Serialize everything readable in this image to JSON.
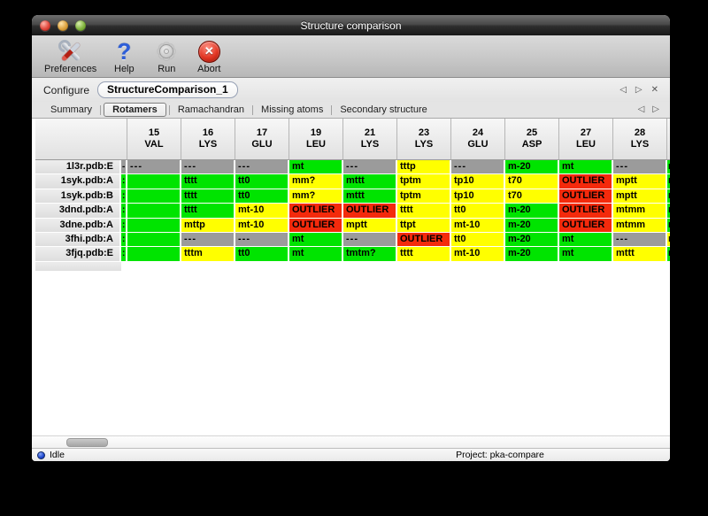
{
  "window": {
    "title": "Structure comparison"
  },
  "toolbar": {
    "buttons": [
      {
        "label": "Preferences",
        "icon": "tools-icon"
      },
      {
        "label": "Help",
        "icon": "question-icon"
      },
      {
        "label": "Run",
        "icon": "gear-icon"
      },
      {
        "label": "Abort",
        "icon": "abort-icon"
      }
    ]
  },
  "configure": {
    "label": "Configure",
    "value": "StructureComparison_1"
  },
  "panel_nav": {
    "prev": "◁",
    "next": "▷",
    "close": "✕"
  },
  "tabs": [
    {
      "label": "Summary",
      "selected": false
    },
    {
      "label": "Rotamers",
      "selected": true
    },
    {
      "label": "Ramachandran",
      "selected": false
    },
    {
      "label": "Missing atoms",
      "selected": false
    },
    {
      "label": "Secondary structure",
      "selected": false
    }
  ],
  "colors": {
    "green": "#00e400",
    "yellow": "#ffff00",
    "red": "#f42a0c",
    "gray": "#9b9b9b"
  },
  "table": {
    "columns": [
      {
        "num": "15",
        "res": "VAL"
      },
      {
        "num": "16",
        "res": "LYS"
      },
      {
        "num": "17",
        "res": "GLU"
      },
      {
        "num": "19",
        "res": "LEU"
      },
      {
        "num": "21",
        "res": "LYS"
      },
      {
        "num": "23",
        "res": "LYS"
      },
      {
        "num": "24",
        "res": "GLU"
      },
      {
        "num": "25",
        "res": "ASP"
      },
      {
        "num": "27",
        "res": "LEU"
      },
      {
        "num": "28",
        "res": "LYS"
      }
    ],
    "rows": [
      {
        "name": "1l3r.pdb:E",
        "left_sliver": {
          "color": "gray",
          "text": "-"
        },
        "cells": [
          {
            "text": "---",
            "color": "gray"
          },
          {
            "text": "---",
            "color": "gray"
          },
          {
            "text": "---",
            "color": "gray"
          },
          {
            "text": "mt",
            "color": "green"
          },
          {
            "text": "---",
            "color": "gray"
          },
          {
            "text": "tttp",
            "color": "yellow"
          },
          {
            "text": "---",
            "color": "gray"
          },
          {
            "text": "m-20",
            "color": "green"
          },
          {
            "text": "mt",
            "color": "green"
          },
          {
            "text": "---",
            "color": "gray"
          }
        ],
        "right_sliver": {
          "color": "green",
          "text": "m"
        }
      },
      {
        "name": "1syk.pdb:A",
        "left_sliver": {
          "color": "green",
          "text": ":"
        },
        "cells": [
          {
            "text": "",
            "color": "green"
          },
          {
            "text": "tttt",
            "color": "green"
          },
          {
            "text": "tt0",
            "color": "green"
          },
          {
            "text": "mm?",
            "color": "yellow"
          },
          {
            "text": "mttt",
            "color": "green"
          },
          {
            "text": "tptm",
            "color": "yellow"
          },
          {
            "text": "tp10",
            "color": "yellow"
          },
          {
            "text": "t70",
            "color": "yellow"
          },
          {
            "text": "OUTLIER",
            "color": "red"
          },
          {
            "text": "mptt",
            "color": "yellow"
          }
        ],
        "right_sliver": {
          "color": "green",
          "text": "m"
        }
      },
      {
        "name": "1syk.pdb:B",
        "left_sliver": {
          "color": "green",
          "text": ":"
        },
        "cells": [
          {
            "text": "",
            "color": "green"
          },
          {
            "text": "tttt",
            "color": "green"
          },
          {
            "text": "tt0",
            "color": "green"
          },
          {
            "text": "mm?",
            "color": "yellow"
          },
          {
            "text": "mttt",
            "color": "green"
          },
          {
            "text": "tptm",
            "color": "yellow"
          },
          {
            "text": "tp10",
            "color": "yellow"
          },
          {
            "text": "t70",
            "color": "yellow"
          },
          {
            "text": "OUTLIER",
            "color": "red"
          },
          {
            "text": "mptt",
            "color": "yellow"
          }
        ],
        "right_sliver": {
          "color": "green",
          "text": "m"
        }
      },
      {
        "name": "3dnd.pdb:A",
        "left_sliver": {
          "color": "green",
          "text": ":"
        },
        "cells": [
          {
            "text": "",
            "color": "green"
          },
          {
            "text": "tttt",
            "color": "green"
          },
          {
            "text": "mt-10",
            "color": "yellow"
          },
          {
            "text": "OUTLIER",
            "color": "red"
          },
          {
            "text": "OUTLIER",
            "color": "red"
          },
          {
            "text": "tttt",
            "color": "yellow"
          },
          {
            "text": "tt0",
            "color": "yellow"
          },
          {
            "text": "m-20",
            "color": "green"
          },
          {
            "text": "OUTLIER",
            "color": "red"
          },
          {
            "text": "mtmm",
            "color": "yellow"
          }
        ],
        "right_sliver": {
          "color": "green",
          "text": "m"
        }
      },
      {
        "name": "3dne.pdb:A",
        "left_sliver": {
          "color": "green",
          "text": ":"
        },
        "cells": [
          {
            "text": "",
            "color": "green"
          },
          {
            "text": "mttp",
            "color": "yellow"
          },
          {
            "text": "mt-10",
            "color": "yellow"
          },
          {
            "text": "OUTLIER",
            "color": "red"
          },
          {
            "text": "mptt",
            "color": "yellow"
          },
          {
            "text": "ttpt",
            "color": "yellow"
          },
          {
            "text": "mt-10",
            "color": "yellow"
          },
          {
            "text": "m-20",
            "color": "green"
          },
          {
            "text": "OUTLIER",
            "color": "red"
          },
          {
            "text": "mtmm",
            "color": "yellow"
          }
        ],
        "right_sliver": {
          "color": "green",
          "text": "m"
        }
      },
      {
        "name": "3fhi.pdb:A",
        "left_sliver": {
          "color": "green",
          "text": ":"
        },
        "cells": [
          {
            "text": "",
            "color": "green"
          },
          {
            "text": "---",
            "color": "gray"
          },
          {
            "text": "---",
            "color": "gray"
          },
          {
            "text": "mt",
            "color": "green"
          },
          {
            "text": "---",
            "color": "gray"
          },
          {
            "text": "OUTLIER",
            "color": "red"
          },
          {
            "text": "tt0",
            "color": "yellow"
          },
          {
            "text": "m-20",
            "color": "green"
          },
          {
            "text": "mt",
            "color": "green"
          },
          {
            "text": "---",
            "color": "gray"
          }
        ],
        "right_sliver": {
          "color": "yellow",
          "text": "m"
        }
      },
      {
        "name": "3fjq.pdb:E",
        "left_sliver": {
          "color": "green",
          "text": ":"
        },
        "cells": [
          {
            "text": "",
            "color": "green"
          },
          {
            "text": "tttm",
            "color": "yellow"
          },
          {
            "text": "tt0",
            "color": "green"
          },
          {
            "text": "mt",
            "color": "green"
          },
          {
            "text": "tmtm?",
            "color": "green"
          },
          {
            "text": "tttt",
            "color": "yellow"
          },
          {
            "text": "mt-10",
            "color": "yellow"
          },
          {
            "text": "m-20",
            "color": "green"
          },
          {
            "text": "mt",
            "color": "green"
          },
          {
            "text": "mttt",
            "color": "yellow"
          }
        ],
        "right_sliver": {
          "color": "green",
          "text": "m"
        }
      }
    ]
  },
  "statusbar": {
    "status": "Idle",
    "project": "Project: pka-compare"
  }
}
